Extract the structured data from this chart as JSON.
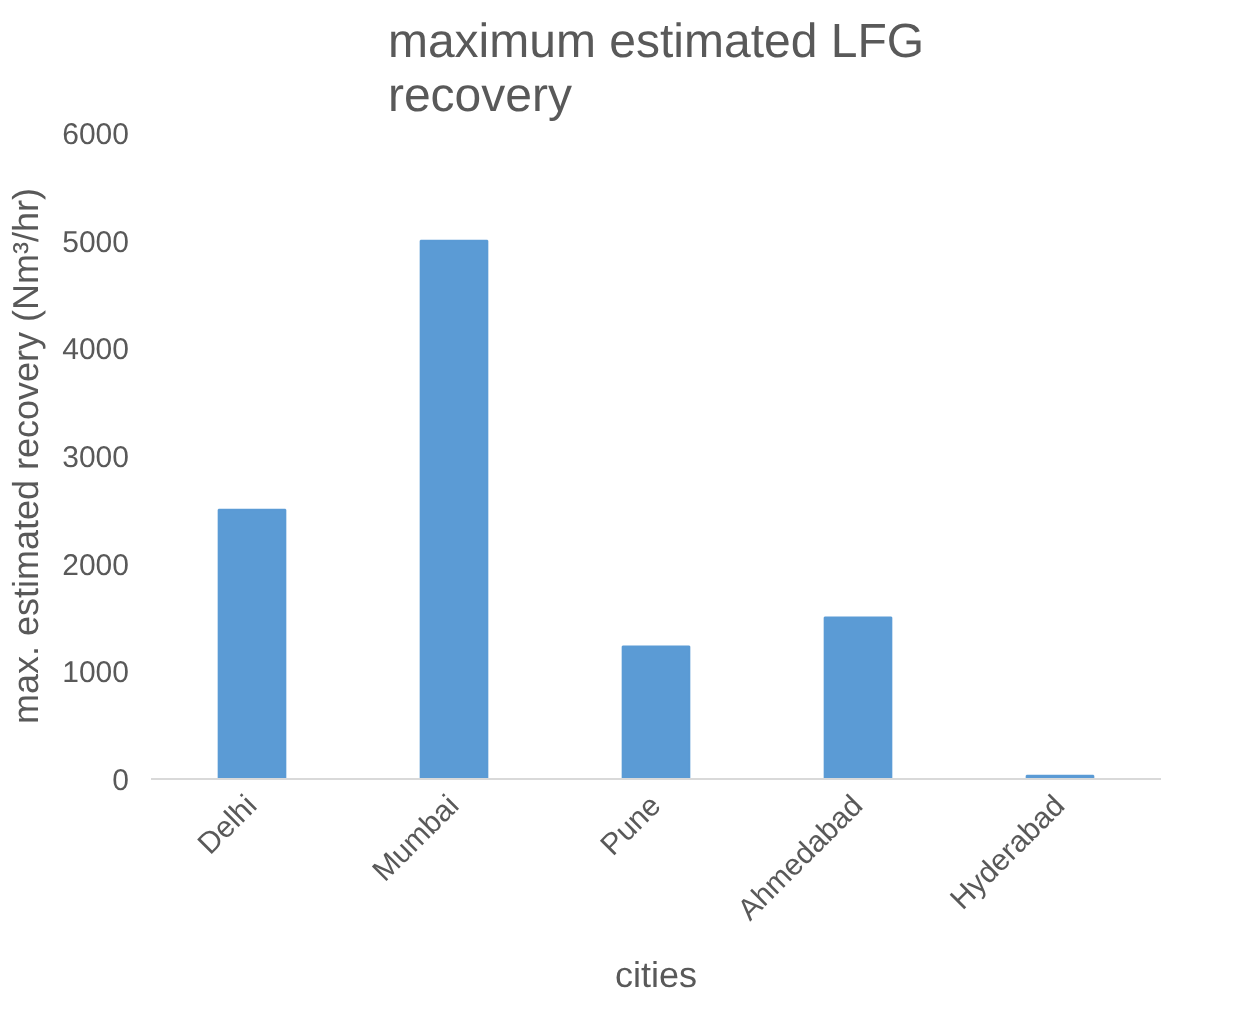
{
  "chart_data": {
    "type": "bar",
    "title": "maximum estimated LFG recovery",
    "xlabel": "cities",
    "ylabel": "max. estimated recovery (Nm³/hr)",
    "categories": [
      "Delhi",
      "Mumbai",
      "Pune",
      "Ahmedabad",
      "Hyderabad"
    ],
    "values": [
      2500,
      5000,
      1230,
      1500,
      30
    ],
    "color": "#5b9bd5",
    "ylim": [
      0,
      6000
    ],
    "yticks": [
      0,
      1000,
      2000,
      3000,
      4000,
      5000,
      6000
    ],
    "grid": false
  }
}
